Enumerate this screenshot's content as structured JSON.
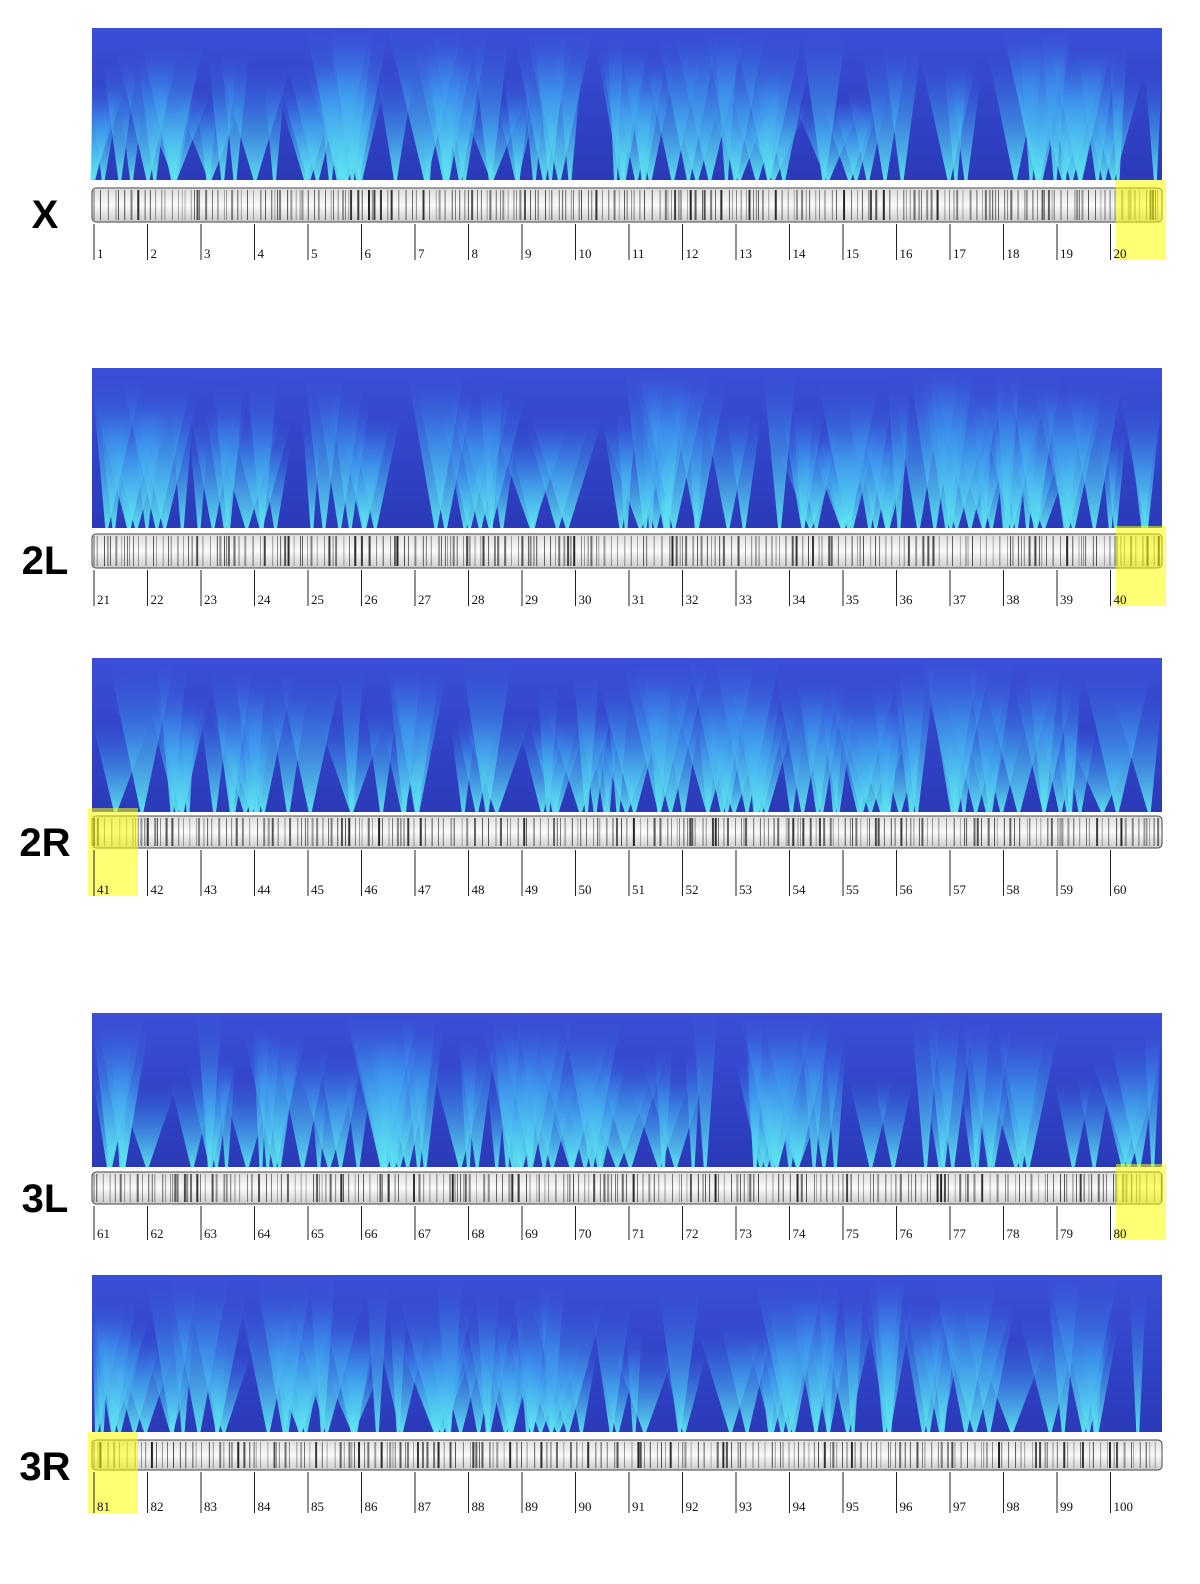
{
  "panels": [
    {
      "label": "X",
      "divisions": [
        1,
        2,
        3,
        4,
        5,
        6,
        7,
        8,
        9,
        10,
        11,
        12,
        13,
        14,
        15,
        16,
        17,
        18,
        19,
        20
      ]
    },
    {
      "label": "2L",
      "divisions": [
        21,
        22,
        23,
        24,
        25,
        26,
        27,
        28,
        29,
        30,
        31,
        32,
        33,
        34,
        35,
        36,
        37,
        38,
        39,
        40
      ]
    },
    {
      "label": "2R",
      "divisions": [
        41,
        42,
        43,
        44,
        45,
        46,
        47,
        48,
        49,
        50,
        51,
        52,
        53,
        54,
        55,
        56,
        57,
        58,
        59,
        60
      ]
    },
    {
      "label": "3L",
      "divisions": [
        61,
        62,
        63,
        64,
        65,
        66,
        67,
        68,
        69,
        70,
        71,
        72,
        73,
        74,
        75,
        76,
        77,
        78,
        79,
        80
      ]
    },
    {
      "label": "3R",
      "divisions": [
        81,
        82,
        83,
        84,
        85,
        86,
        87,
        88,
        89,
        90,
        91,
        92,
        93,
        94,
        95,
        96,
        97,
        98,
        99,
        100
      ]
    }
  ]
}
